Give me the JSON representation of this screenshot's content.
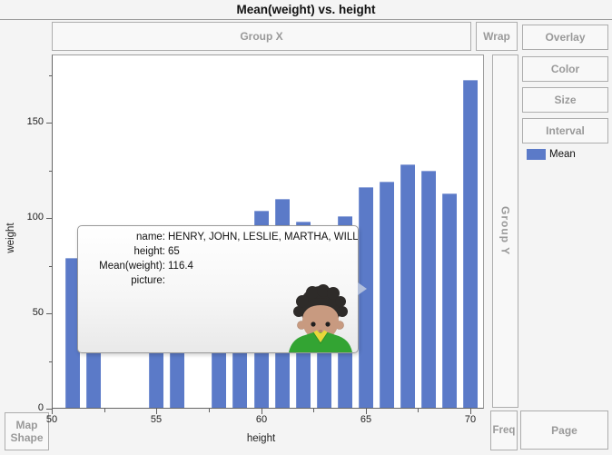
{
  "window": {
    "title": "Mean(weight) vs. height"
  },
  "drop_zones": {
    "group_x": "Group X",
    "wrap": "Wrap",
    "group_y": "Group Y",
    "freq": "Freq",
    "page": "Page",
    "map_shape": {
      "line1": "Map",
      "line2": "Shape"
    }
  },
  "right_panel": {
    "buttons": [
      {
        "label": "Overlay"
      },
      {
        "label": "Color"
      },
      {
        "label": "Size"
      },
      {
        "label": "Interval"
      }
    ],
    "legend": {
      "label": "Mean",
      "color": "#5b7ac8"
    }
  },
  "tooltip": {
    "rows": [
      {
        "label": "name:",
        "value": "HENRY, JOHN, LESLIE, MARTHA, WILLIAM"
      },
      {
        "label": "height:",
        "value": "65"
      },
      {
        "label": "Mean(weight):",
        "value": "116.4"
      },
      {
        "label": "picture:",
        "value": ""
      }
    ],
    "avatar": "boy-portrait-dark-curly-hair-green-shirt"
  },
  "colors": {
    "bar": "#5b7ac8",
    "background": "#f4f4f4",
    "zone_text": "#9a9a9a"
  },
  "chart_data": {
    "type": "bar",
    "title": "Mean(weight) vs. height",
    "xlabel": "height",
    "ylabel": "weight",
    "xlim": [
      50,
      70
    ],
    "ylim": [
      0,
      185
    ],
    "x_ticks": [
      50,
      55,
      60,
      65,
      70
    ],
    "x_minor_ticks": [
      52.5,
      57.5,
      62.5,
      67.5
    ],
    "y_ticks": [
      0,
      50,
      100,
      150
    ],
    "y_minor_ticks": [
      25,
      75,
      125,
      175
    ],
    "grid": false,
    "legend_position": "right",
    "series": [
      {
        "name": "Mean",
        "points": [
          {
            "x": 51,
            "y": 79
          },
          {
            "x": 52,
            "y": 64
          },
          {
            "x": 55,
            "y": 74
          },
          {
            "x": 56,
            "y": 67
          },
          {
            "x": 58,
            "y": 95
          },
          {
            "x": 59,
            "y": 87
          },
          {
            "x": 60,
            "y": 104
          },
          {
            "x": 61,
            "y": 110
          },
          {
            "x": 62,
            "y": 98
          },
          {
            "x": 63,
            "y": 94
          },
          {
            "x": 64,
            "y": 101
          },
          {
            "x": 65,
            "y": 116.4
          },
          {
            "x": 66,
            "y": 119
          },
          {
            "x": 67,
            "y": 128
          },
          {
            "x": 68,
            "y": 125
          },
          {
            "x": 69,
            "y": 113
          },
          {
            "x": 70,
            "y": 172.5
          }
        ]
      }
    ]
  }
}
